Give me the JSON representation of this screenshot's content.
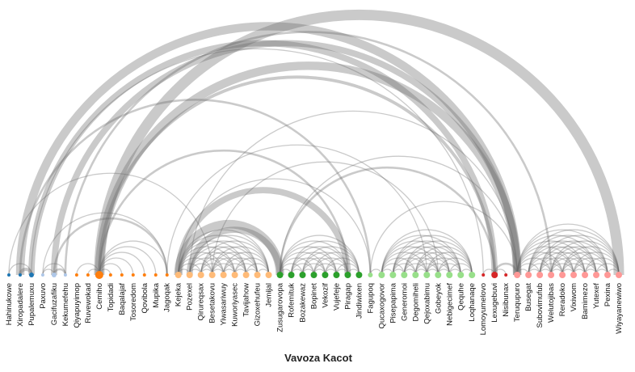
{
  "chart_data": {
    "type": "arc",
    "title": "Vavoza Kacot",
    "nodes": [
      {
        "name": "Hahinukowe",
        "color": "#1f77b4",
        "size": 2
      },
      {
        "name": "Xiropadalere",
        "color": "#1f77b4",
        "size": 2
      },
      {
        "name": "Pupalemuxu",
        "color": "#1f77b4",
        "size": 3
      },
      {
        "name": "Paxuvo",
        "color": "#aec7e8",
        "size": 2
      },
      {
        "name": "Gacifuzafiku",
        "color": "#aec7e8",
        "size": 3
      },
      {
        "name": "Kekumefehu",
        "color": "#aec7e8",
        "size": 2
      },
      {
        "name": "Qiyapuyimop",
        "color": "#ff7f0e",
        "size": 2
      },
      {
        "name": "Ruvewokad",
        "color": "#ff7f0e",
        "size": 2
      },
      {
        "name": "Cemiho",
        "color": "#ff7f0e",
        "size": 5
      },
      {
        "name": "Topidadi",
        "color": "#ff7f0e",
        "size": 2
      },
      {
        "name": "Baqalajaf",
        "color": "#ff7f0e",
        "size": 2
      },
      {
        "name": "Tosoredom",
        "color": "#ff7f0e",
        "size": 2
      },
      {
        "name": "Qovibola",
        "color": "#ff7f0e",
        "size": 2
      },
      {
        "name": "Mupika",
        "color": "#ff7f0e",
        "size": 2
      },
      {
        "name": "Jagoqak",
        "color": "#ff7f0e",
        "size": 2
      },
      {
        "name": "Kejeka",
        "color": "#ffbb78",
        "size": 4
      },
      {
        "name": "Pozexel",
        "color": "#ffbb78",
        "size": 4
      },
      {
        "name": "Qirureqsax",
        "color": "#ffbb78",
        "size": 4
      },
      {
        "name": "Besetakovu",
        "color": "#ffbb78",
        "size": 4
      },
      {
        "name": "Yiwasariwuy",
        "color": "#ffbb78",
        "size": 4
      },
      {
        "name": "Kuworiyasec",
        "color": "#ffbb78",
        "size": 4
      },
      {
        "name": "Tavijahow",
        "color": "#ffbb78",
        "size": 4
      },
      {
        "name": "Gizoxehufeu",
        "color": "#ffbb78",
        "size": 4
      },
      {
        "name": "Jemijal",
        "color": "#ffbb78",
        "size": 4
      },
      {
        "name": "Zusugarovopa",
        "color": "#2ca02c",
        "size": 4
      },
      {
        "name": "Rofemituk",
        "color": "#2ca02c",
        "size": 4
      },
      {
        "name": "Bozakewaz",
        "color": "#2ca02c",
        "size": 4
      },
      {
        "name": "Bopinet",
        "color": "#2ca02c",
        "size": 4
      },
      {
        "name": "Vekozif",
        "color": "#2ca02c",
        "size": 4
      },
      {
        "name": "Vujefeje",
        "color": "#2ca02c",
        "size": 4
      },
      {
        "name": "Piragap",
        "color": "#2ca02c",
        "size": 4
      },
      {
        "name": "Jindiwixen",
        "color": "#2ca02c",
        "size": 4
      },
      {
        "name": "Fagupoq",
        "color": "#98df8a",
        "size": 3
      },
      {
        "name": "Qucaxogovor",
        "color": "#98df8a",
        "size": 4
      },
      {
        "name": "Pisepapima",
        "color": "#98df8a",
        "size": 4
      },
      {
        "name": "Generomoi",
        "color": "#98df8a",
        "size": 4
      },
      {
        "name": "Degomiheli",
        "color": "#98df8a",
        "size": 4
      },
      {
        "name": "Qejoxabimu",
        "color": "#98df8a",
        "size": 4
      },
      {
        "name": "Gobeyok",
        "color": "#98df8a",
        "size": 4
      },
      {
        "name": "Nebigecimef",
        "color": "#98df8a",
        "size": 4
      },
      {
        "name": "Qequhe",
        "color": "#98df8a",
        "size": 4
      },
      {
        "name": "Loqhanaqe",
        "color": "#98df8a",
        "size": 4
      },
      {
        "name": "Lomoyumelovo",
        "color": "#d62728",
        "size": 2
      },
      {
        "name": "Lexugebuvi",
        "color": "#d62728",
        "size": 4
      },
      {
        "name": "Nisibunax",
        "color": "#d62728",
        "size": 2
      },
      {
        "name": "Teruqupuro",
        "color": "#ff9896",
        "size": 4
      },
      {
        "name": "Busegat",
        "color": "#ff9896",
        "size": 4
      },
      {
        "name": "Subovimufub",
        "color": "#ff9896",
        "size": 4
      },
      {
        "name": "Welutojibas",
        "color": "#ff9896",
        "size": 4
      },
      {
        "name": "Reradoko",
        "color": "#ff9896",
        "size": 4
      },
      {
        "name": "Vixiwom",
        "color": "#ff9896",
        "size": 4
      },
      {
        "name": "Bamimezo",
        "color": "#ff9896",
        "size": 4
      },
      {
        "name": "Yutexef",
        "color": "#ff9896",
        "size": 4
      },
      {
        "name": "Pexina",
        "color": "#ff9896",
        "size": 4
      },
      {
        "name": "Wiyayanewiwo",
        "color": "#ff9896",
        "size": 4
      }
    ],
    "links": [
      [
        0,
        2,
        1
      ],
      [
        1,
        2,
        3
      ],
      [
        0,
        18,
        1
      ],
      [
        3,
        5,
        1
      ],
      [
        4,
        5,
        2
      ],
      [
        3,
        4,
        1
      ],
      [
        6,
        8,
        1
      ],
      [
        7,
        8,
        1
      ],
      [
        8,
        9,
        1
      ],
      [
        8,
        10,
        1
      ],
      [
        8,
        11,
        1
      ],
      [
        8,
        12,
        1
      ],
      [
        8,
        13,
        1
      ],
      [
        8,
        14,
        1
      ],
      [
        3,
        14,
        1
      ],
      [
        4,
        14,
        2
      ],
      [
        8,
        30,
        2
      ],
      [
        8,
        43,
        3
      ],
      [
        8,
        54,
        10
      ],
      [
        8,
        45,
        8
      ],
      [
        1,
        45,
        8
      ],
      [
        2,
        43,
        6
      ],
      [
        4,
        45,
        6
      ],
      [
        5,
        48,
        2
      ],
      [
        1,
        32,
        2
      ],
      [
        2,
        42,
        1
      ],
      [
        14,
        37,
        1
      ],
      [
        15,
        32,
        1
      ],
      [
        24,
        43,
        2
      ],
      [
        32,
        45,
        1
      ],
      [
        24,
        45,
        1
      ],
      [
        16,
        45,
        1
      ],
      [
        18,
        38,
        1
      ],
      [
        15,
        24,
        8
      ],
      [
        16,
        24,
        6
      ],
      [
        15,
        30,
        6
      ],
      [
        15,
        16,
        1
      ],
      [
        15,
        17,
        1
      ],
      [
        15,
        18,
        1
      ],
      [
        15,
        19,
        1
      ],
      [
        15,
        20,
        1
      ],
      [
        15,
        21,
        1
      ],
      [
        15,
        22,
        1
      ],
      [
        15,
        23,
        1
      ],
      [
        16,
        17,
        1
      ],
      [
        16,
        18,
        1
      ],
      [
        16,
        19,
        1
      ],
      [
        16,
        20,
        1
      ],
      [
        16,
        21,
        1
      ],
      [
        16,
        22,
        1
      ],
      [
        16,
        23,
        1
      ],
      [
        17,
        18,
        1
      ],
      [
        17,
        19,
        1
      ],
      [
        17,
        20,
        1
      ],
      [
        17,
        21,
        1
      ],
      [
        17,
        22,
        1
      ],
      [
        17,
        23,
        1
      ],
      [
        18,
        19,
        1
      ],
      [
        18,
        20,
        1
      ],
      [
        18,
        21,
        1
      ],
      [
        18,
        22,
        1
      ],
      [
        18,
        23,
        1
      ],
      [
        19,
        20,
        1
      ],
      [
        19,
        21,
        1
      ],
      [
        19,
        22,
        1
      ],
      [
        19,
        23,
        1
      ],
      [
        20,
        21,
        1
      ],
      [
        20,
        22,
        1
      ],
      [
        20,
        23,
        1
      ],
      [
        21,
        22,
        1
      ],
      [
        21,
        23,
        1
      ],
      [
        22,
        23,
        1
      ],
      [
        24,
        25,
        1
      ],
      [
        24,
        26,
        1
      ],
      [
        24,
        27,
        1
      ],
      [
        24,
        28,
        1
      ],
      [
        24,
        29,
        1
      ],
      [
        24,
        30,
        1
      ],
      [
        24,
        31,
        1
      ],
      [
        25,
        26,
        1
      ],
      [
        25,
        27,
        1
      ],
      [
        25,
        28,
        1
      ],
      [
        25,
        29,
        1
      ],
      [
        25,
        30,
        1
      ],
      [
        25,
        31,
        1
      ],
      [
        26,
        27,
        1
      ],
      [
        26,
        28,
        1
      ],
      [
        26,
        29,
        1
      ],
      [
        26,
        30,
        1
      ],
      [
        26,
        31,
        1
      ],
      [
        27,
        28,
        1
      ],
      [
        27,
        29,
        1
      ],
      [
        27,
        30,
        1
      ],
      [
        27,
        31,
        1
      ],
      [
        28,
        29,
        1
      ],
      [
        28,
        30,
        1
      ],
      [
        28,
        31,
        1
      ],
      [
        29,
        30,
        1
      ],
      [
        29,
        31,
        1
      ],
      [
        30,
        31,
        1
      ],
      [
        32,
        33,
        1
      ],
      [
        33,
        34,
        1
      ],
      [
        33,
        35,
        1
      ],
      [
        33,
        36,
        1
      ],
      [
        33,
        37,
        1
      ],
      [
        33,
        38,
        1
      ],
      [
        33,
        39,
        1
      ],
      [
        33,
        40,
        1
      ],
      [
        33,
        41,
        1
      ],
      [
        34,
        35,
        1
      ],
      [
        34,
        36,
        1
      ],
      [
        34,
        37,
        1
      ],
      [
        34,
        38,
        1
      ],
      [
        34,
        39,
        1
      ],
      [
        34,
        40,
        1
      ],
      [
        34,
        41,
        1
      ],
      [
        35,
        36,
        1
      ],
      [
        35,
        37,
        1
      ],
      [
        35,
        38,
        1
      ],
      [
        35,
        39,
        1
      ],
      [
        35,
        40,
        1
      ],
      [
        35,
        41,
        1
      ],
      [
        36,
        37,
        1
      ],
      [
        36,
        38,
        1
      ],
      [
        36,
        39,
        1
      ],
      [
        36,
        40,
        1
      ],
      [
        36,
        41,
        1
      ],
      [
        37,
        38,
        1
      ],
      [
        37,
        39,
        1
      ],
      [
        37,
        40,
        1
      ],
      [
        37,
        41,
        1
      ],
      [
        38,
        39,
        1
      ],
      [
        38,
        40,
        1
      ],
      [
        38,
        41,
        1
      ],
      [
        39,
        40,
        1
      ],
      [
        39,
        41,
        1
      ],
      [
        40,
        41,
        1
      ],
      [
        42,
        43,
        1
      ],
      [
        43,
        44,
        1
      ],
      [
        43,
        45,
        2
      ],
      [
        45,
        46,
        1
      ],
      [
        45,
        47,
        1
      ],
      [
        45,
        48,
        1
      ],
      [
        45,
        49,
        1
      ],
      [
        45,
        50,
        1
      ],
      [
        45,
        51,
        1
      ],
      [
        45,
        52,
        1
      ],
      [
        45,
        53,
        1
      ],
      [
        45,
        54,
        1
      ],
      [
        46,
        47,
        1
      ],
      [
        46,
        48,
        1
      ],
      [
        46,
        49,
        1
      ],
      [
        46,
        50,
        1
      ],
      [
        46,
        51,
        1
      ],
      [
        46,
        52,
        1
      ],
      [
        46,
        53,
        1
      ],
      [
        46,
        54,
        1
      ],
      [
        47,
        48,
        1
      ],
      [
        47,
        49,
        1
      ],
      [
        47,
        50,
        1
      ],
      [
        47,
        51,
        1
      ],
      [
        47,
        52,
        1
      ],
      [
        47,
        53,
        1
      ],
      [
        47,
        54,
        1
      ],
      [
        48,
        49,
        1
      ],
      [
        48,
        50,
        1
      ],
      [
        48,
        51,
        1
      ],
      [
        48,
        52,
        1
      ],
      [
        48,
        53,
        1
      ],
      [
        48,
        54,
        1
      ],
      [
        49,
        50,
        1
      ],
      [
        49,
        51,
        1
      ],
      [
        49,
        52,
        1
      ],
      [
        49,
        53,
        1
      ],
      [
        49,
        54,
        1
      ],
      [
        50,
        51,
        1
      ],
      [
        50,
        52,
        1
      ],
      [
        50,
        53,
        1
      ],
      [
        50,
        54,
        1
      ],
      [
        51,
        52,
        1
      ],
      [
        51,
        53,
        1
      ],
      [
        51,
        54,
        1
      ],
      [
        52,
        53,
        1
      ],
      [
        52,
        54,
        1
      ],
      [
        53,
        54,
        1
      ]
    ]
  }
}
